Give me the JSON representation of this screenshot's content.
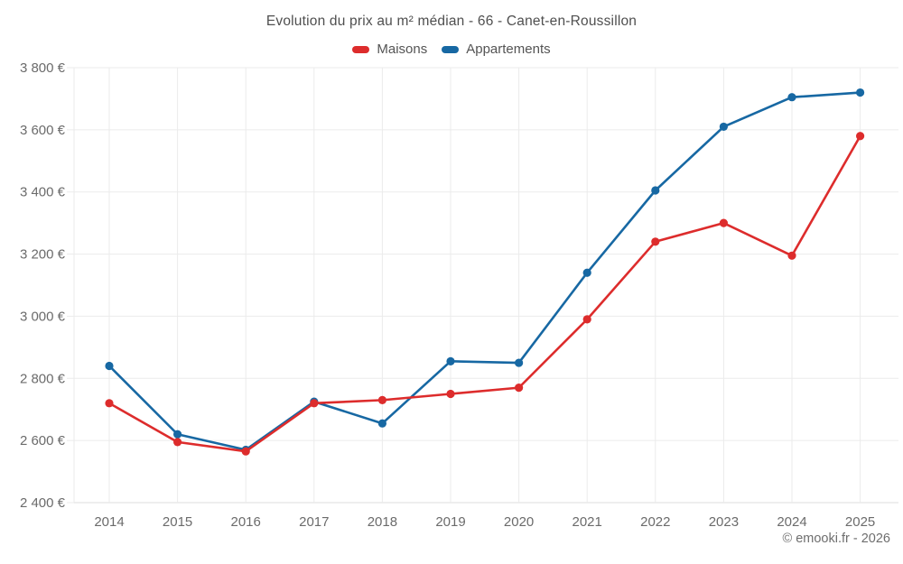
{
  "header": {
    "title": "Evolution du prix au m² médian - 66 - Canet-en-Roussillon"
  },
  "legend": [
    {
      "label": "Maisons",
      "color": "#dd2c2c"
    },
    {
      "label": "Appartements",
      "color": "#1768a3"
    }
  ],
  "footer": {
    "credit": "© emooki.fr - 2026"
  },
  "chart_data": {
    "type": "line",
    "title": "Evolution du prix au m² médian - 66 - Canet-en-Roussillon",
    "categories": [
      "2014",
      "2015",
      "2016",
      "2017",
      "2018",
      "2019",
      "2020",
      "2021",
      "2022",
      "2023",
      "2024",
      "2025"
    ],
    "series": [
      {
        "name": "Maisons",
        "color": "#dd2c2c",
        "values": [
          2720,
          2595,
          2565,
          2720,
          2730,
          2750,
          2770,
          2990,
          3240,
          3300,
          3195,
          3580
        ]
      },
      {
        "name": "Appartements",
        "color": "#1768a3",
        "values": [
          2840,
          2620,
          2570,
          2725,
          2655,
          2855,
          2850,
          3140,
          3405,
          3610,
          3705,
          3720
        ]
      }
    ],
    "xlabel": "",
    "ylabel": "",
    "ylim": [
      2400,
      3800
    ],
    "y_tick_values": [
      2400,
      2600,
      2800,
      3000,
      3200,
      3400,
      3600,
      3800
    ],
    "y_tick_labels": [
      "2 400 €",
      "2 600 €",
      "2 800 €",
      "3 000 €",
      "3 200 €",
      "3 400 €",
      "3 600 €",
      "3 800 €"
    ],
    "grid": true,
    "legend_position": "top",
    "colors": {
      "grid": "#ebebeb",
      "axis": "#dcdcdc",
      "tick_text": "#6b6b6b"
    }
  }
}
